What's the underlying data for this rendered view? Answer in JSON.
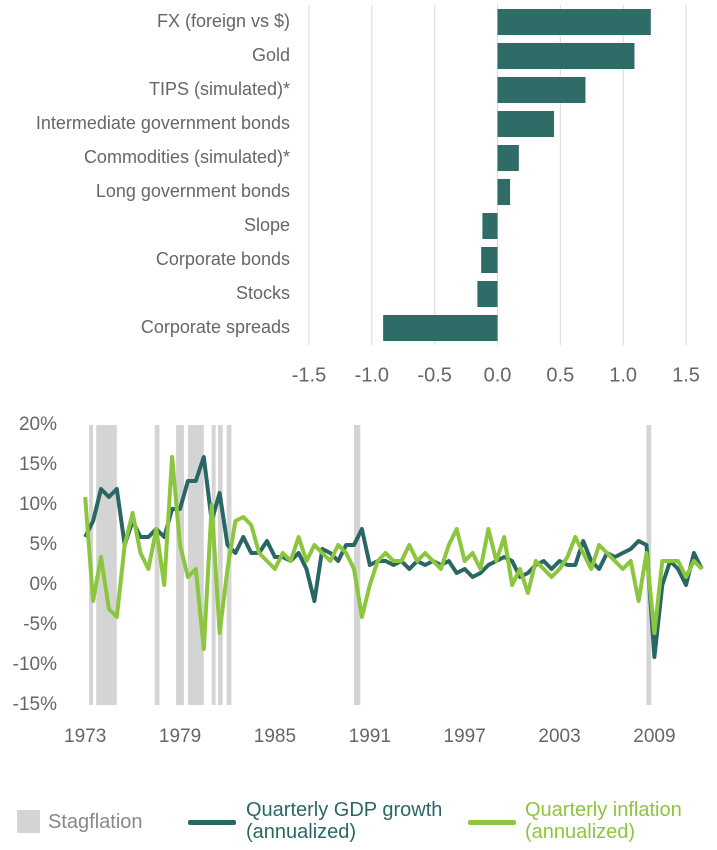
{
  "chart_data": [
    {
      "type": "bar",
      "orientation": "horizontal",
      "categories": [
        "FX (foreign vs $)",
        "Gold",
        "TIPS (simulated)*",
        "Intermediate government bonds",
        "Commodities (simulated)*",
        "Long government bonds",
        "Slope",
        "Corporate bonds",
        "Stocks",
        "Corporate spreads"
      ],
      "values": [
        1.22,
        1.09,
        0.7,
        0.45,
        0.17,
        0.1,
        -0.12,
        -0.13,
        -0.16,
        -0.91
      ],
      "color": "#2f6b67",
      "xlim": [
        -1.5,
        1.5
      ],
      "xticks": [
        -1.5,
        {
          "value": -1,
          "label": "-1.0"
        },
        -0.5,
        {
          "value": 0,
          "label": "0.0"
        },
        0.5,
        {
          "value": 1,
          "label": "1.0"
        },
        1.5
      ],
      "grid": true
    },
    {
      "type": "line",
      "x": [
        1973,
        1973.5,
        1974,
        1974.5,
        1975,
        1975.5,
        1976,
        1976.5,
        1977,
        1977.5,
        1978,
        1978.5,
        1979,
        1979.5,
        1980,
        1980.5,
        1981,
        1981.5,
        1982,
        1982.5,
        1983,
        1983.5,
        1984,
        1984.5,
        1985,
        1985.5,
        1986,
        1986.5,
        1987,
        1987.5,
        1988,
        1988.5,
        1989,
        1989.5,
        1990,
        1990.5,
        1991,
        1991.5,
        1992,
        1992.5,
        1993,
        1993.5,
        1994,
        1994.5,
        1995,
        1995.5,
        1996,
        1996.5,
        1997,
        1997.5,
        1998,
        1998.5,
        1999,
        1999.5,
        2000,
        2000.5,
        2001,
        2001.5,
        2002,
        2002.5,
        2003,
        2003.5,
        2004,
        2004.5,
        2005,
        2005.5,
        2006,
        2006.5,
        2007,
        2007.5,
        2008,
        2008.5,
        2009,
        2009.5,
        2010,
        2010.5,
        2011,
        2011.5,
        2012
      ],
      "series": [
        {
          "name": "Quarterly GDP growth (annualized)",
          "color": "#2a6764",
          "values": [
            6,
            8,
            12,
            11,
            12,
            5,
            8,
            6,
            6,
            7,
            6,
            9.5,
            9.5,
            13,
            13,
            16,
            8,
            11.5,
            5,
            4,
            6,
            4,
            4,
            5.5,
            3.5,
            3.5,
            3,
            4,
            2,
            -2,
            4.5,
            4,
            3,
            5,
            5,
            7,
            2.5,
            3,
            3,
            2.5,
            3,
            2,
            3,
            2.5,
            3,
            2.5,
            3,
            1.5,
            2,
            1,
            1.5,
            2.5,
            3,
            3.5,
            3,
            1,
            1.5,
            2.5,
            3,
            2,
            3,
            2.5,
            2.5,
            5.5,
            3,
            2,
            4,
            3.5,
            4,
            4.5,
            5.5,
            5,
            -9,
            0,
            3,
            2,
            0,
            4,
            2
          ]
        },
        {
          "name": "Quarterly inflation (annualized)",
          "color": "#8cc63f",
          "values": [
            11,
            -2,
            3.5,
            -3,
            -4,
            5,
            9,
            4,
            2,
            7,
            0,
            16,
            5,
            1,
            2,
            -8,
            10,
            -6,
            2,
            8,
            8.5,
            7.5,
            4,
            3,
            2,
            4,
            3,
            6,
            3,
            5,
            4,
            3,
            5,
            4,
            2,
            -4,
            0,
            3,
            4,
            3,
            3,
            5,
            3,
            4,
            3,
            2,
            5,
            7,
            3,
            4,
            2,
            7,
            3,
            6,
            0,
            2,
            -1,
            3,
            2,
            1,
            2,
            3.5,
            6,
            4,
            2,
            5,
            4,
            3,
            2,
            3,
            -2,
            4,
            -6,
            3,
            3,
            3,
            1,
            3,
            2
          ]
        }
      ],
      "stagflation": {
        "name": "Stagflation",
        "color": "#d4d4d4",
        "ranges": [
          [
            1973.25,
            1973.5
          ],
          [
            1973.7,
            1975.0
          ],
          [
            1977.4,
            1977.7
          ],
          [
            1978.75,
            1979.25
          ],
          [
            1979.5,
            1980.5
          ],
          [
            1981.0,
            1981.25
          ],
          [
            1981.4,
            1981.7
          ],
          [
            1981.95,
            1982.25
          ],
          [
            1990.0,
            1990.4
          ],
          [
            2008.5,
            2008.8
          ]
        ]
      },
      "xlim": [
        1972.8,
        2012.2
      ],
      "xticks": [
        1973,
        1979,
        1985,
        1991,
        1997,
        2003,
        2009
      ],
      "ylim": [
        -15,
        20
      ],
      "yticks": [
        {
          "value": -15,
          "label": "-15%"
        },
        {
          "value": -10,
          "label": "-10%"
        },
        {
          "value": -5,
          "label": "-5%"
        },
        {
          "value": 0,
          "label": "0%"
        },
        {
          "value": 5,
          "label": "5%"
        },
        {
          "value": 10,
          "label": "10%"
        },
        {
          "value": 15,
          "label": "15%"
        },
        {
          "value": 20,
          "label": "20%"
        }
      ]
    }
  ]
}
